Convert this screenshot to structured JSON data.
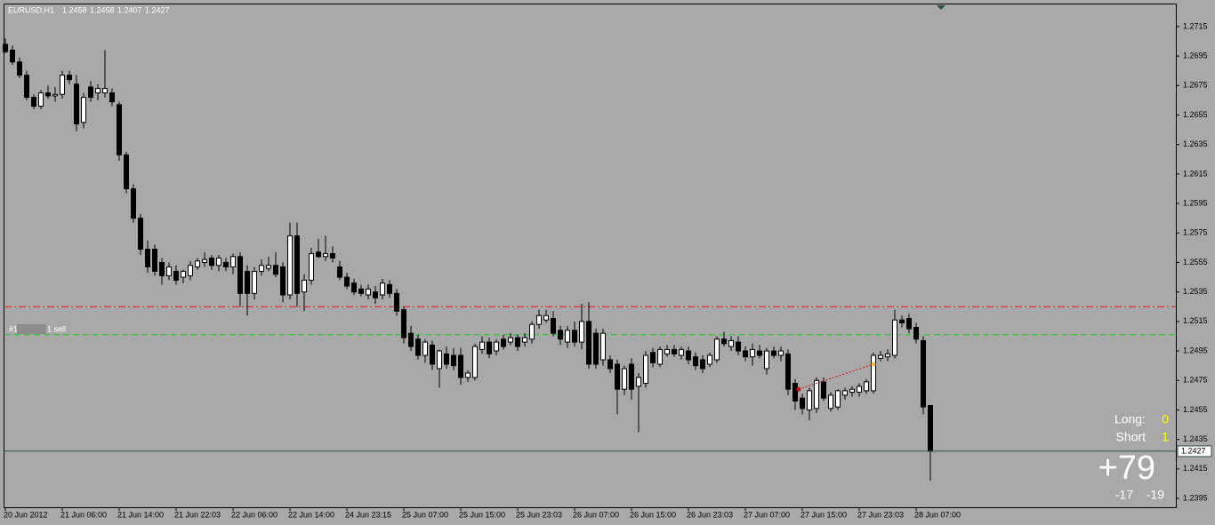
{
  "chart_data": {
    "type": "candlestick",
    "title": "EURUSD,H1",
    "categories": [
      "20 Jun 2012",
      null,
      null,
      null,
      null,
      null,
      null,
      null,
      "21 Jun 06:00",
      null,
      null,
      null,
      null,
      null,
      null,
      null,
      "21 Jun 14:00",
      null,
      null,
      null,
      null,
      null,
      null,
      null,
      "21 Jun 22:03",
      null,
      null,
      null,
      null,
      null,
      null,
      null,
      "22 Jun 06:00",
      null,
      null,
      null,
      null,
      null,
      null,
      null,
      "22 Jun 14:00",
      null,
      null,
      null,
      null,
      null,
      null,
      null,
      "24 Jun 23:15",
      null,
      null,
      null,
      null,
      null,
      null,
      null,
      "25 Jun 07:00",
      null,
      null,
      null,
      null,
      null,
      null,
      null,
      "25 Jun 15:00",
      null,
      null,
      null,
      null,
      null,
      null,
      null,
      "25 Jun 23:03",
      null,
      null,
      null,
      null,
      null,
      null,
      null,
      "26 Jun 07:00",
      null,
      null,
      null,
      null,
      null,
      null,
      null,
      "26 Jun 15:00",
      null,
      null,
      null,
      null,
      null,
      null,
      null,
      "26 Jun 23:03",
      null,
      null,
      null,
      null,
      null,
      null,
      null,
      "27 Jun 07:00",
      null,
      null,
      null,
      null,
      null,
      null,
      null,
      "27 Jun 15:00",
      null,
      null,
      null,
      null,
      null,
      null,
      null,
      "27 Jun 23:03",
      null,
      null,
      null,
      null,
      null,
      null,
      null,
      "28 Jun 07:00",
      null,
      null
    ],
    "ohlc": [
      [
        1.2703,
        1.2707,
        1.2697,
        1.2698
      ],
      [
        1.2699,
        1.2702,
        1.2689,
        1.2691
      ],
      [
        1.2691,
        1.2694,
        1.268,
        1.2682
      ],
      [
        1.2682,
        1.2685,
        1.2665,
        1.2667
      ],
      [
        1.2667,
        1.2669,
        1.2659,
        1.2661
      ],
      [
        1.2661,
        1.2672,
        1.2659,
        1.267
      ],
      [
        1.267,
        1.2675,
        1.2666,
        1.2668
      ],
      [
        1.2668,
        1.2674,
        1.2664,
        1.2669
      ],
      [
        1.2669,
        1.2685,
        1.2666,
        1.2682
      ],
      [
        1.2682,
        1.2685,
        1.2676,
        1.2679
      ],
      [
        1.2676,
        1.2682,
        1.2644,
        1.2649
      ],
      [
        1.265,
        1.267,
        1.2646,
        1.2667
      ],
      [
        1.2674,
        1.2678,
        1.2664,
        1.2667
      ],
      [
        1.267,
        1.2676,
        1.2665,
        1.2673
      ],
      [
        1.267,
        1.2699,
        1.2667,
        1.2673
      ],
      [
        1.267,
        1.2673,
        1.2661,
        1.2664
      ],
      [
        1.2662,
        1.2664,
        1.2624,
        1.2628
      ],
      [
        1.2628,
        1.263,
        1.2602,
        1.2605
      ],
      [
        1.2605,
        1.2608,
        1.2582,
        1.2585
      ],
      [
        1.2585,
        1.2588,
        1.256,
        1.2564
      ],
      [
        1.2564,
        1.257,
        1.2548,
        1.2552
      ],
      [
        1.2564,
        1.2567,
        1.2546,
        1.2549
      ],
      [
        1.2555,
        1.2558,
        1.254,
        1.2546
      ],
      [
        1.2546,
        1.2555,
        1.2543,
        1.2552
      ],
      [
        1.2549,
        1.2553,
        1.254,
        1.2543
      ],
      [
        1.2545,
        1.255,
        1.2541,
        1.2549
      ],
      [
        1.2546,
        1.2556,
        1.2543,
        1.2553
      ],
      [
        1.2552,
        1.2558,
        1.255,
        1.2556
      ],
      [
        1.2555,
        1.2562,
        1.2552,
        1.2557
      ],
      [
        1.2558,
        1.256,
        1.255,
        1.2553
      ],
      [
        1.2553,
        1.256,
        1.2549,
        1.2558
      ],
      [
        1.2555,
        1.2558,
        1.2549,
        1.2552
      ],
      [
        1.2552,
        1.2561,
        1.2547,
        1.2559
      ],
      [
        1.2559,
        1.2562,
        1.2525,
        1.2534
      ],
      [
        1.2549,
        1.2553,
        1.2519,
        1.2534
      ],
      [
        1.2534,
        1.2552,
        1.253,
        1.2549
      ],
      [
        1.2549,
        1.2557,
        1.2546,
        1.2553
      ],
      [
        1.2551,
        1.2559,
        1.2549,
        1.2553
      ],
      [
        1.2553,
        1.2562,
        1.2545,
        1.2547
      ],
      [
        1.2552,
        1.2555,
        1.2528,
        1.2533
      ],
      [
        1.2533,
        1.2582,
        1.253,
        1.2573
      ],
      [
        1.2573,
        1.2582,
        1.2525,
        1.2534
      ],
      [
        1.2535,
        1.2547,
        1.2522,
        1.2543
      ],
      [
        1.2543,
        1.2565,
        1.254,
        1.2561
      ],
      [
        1.2562,
        1.2571,
        1.2558,
        1.2559
      ],
      [
        1.2559,
        1.2573,
        1.2556,
        1.2561
      ],
      [
        1.2561,
        1.2566,
        1.2555,
        1.2558
      ],
      [
        1.2552,
        1.2556,
        1.2543,
        1.2545
      ],
      [
        1.2545,
        1.2548,
        1.2537,
        1.2539
      ],
      [
        1.2541,
        1.2544,
        1.2533,
        1.2535
      ],
      [
        1.2537,
        1.254,
        1.2532,
        1.2534
      ],
      [
        1.2533,
        1.254,
        1.253,
        1.2537
      ],
      [
        1.2535,
        1.2539,
        1.2527,
        1.2531
      ],
      [
        1.2533,
        1.2544,
        1.253,
        1.2541
      ],
      [
        1.254,
        1.2543,
        1.2531,
        1.2534
      ],
      [
        1.2534,
        1.2537,
        1.2519,
        1.2522
      ],
      [
        1.2523,
        1.2525,
        1.25,
        1.2504
      ],
      [
        1.2507,
        1.2512,
        1.2495,
        1.2498
      ],
      [
        1.2503,
        1.2506,
        1.2489,
        1.2492
      ],
      [
        1.2492,
        1.2503,
        1.2487,
        1.2501
      ],
      [
        1.2499,
        1.2502,
        1.2482,
        1.2486
      ],
      [
        1.2483,
        1.2496,
        1.247,
        1.2495
      ],
      [
        1.2493,
        1.2498,
        1.2483,
        1.2486
      ],
      [
        1.2492,
        1.2497,
        1.2482,
        1.2485
      ],
      [
        1.2492,
        1.2497,
        1.2472,
        1.2477
      ],
      [
        1.2477,
        1.2482,
        1.2474,
        1.248
      ],
      [
        1.2477,
        1.25,
        1.2475,
        1.2498
      ],
      [
        1.2496,
        1.2505,
        1.2493,
        1.2501
      ],
      [
        1.2501,
        1.2504,
        1.249,
        1.2493
      ],
      [
        1.2495,
        1.2503,
        1.2492,
        1.2501
      ],
      [
        1.2503,
        1.2506,
        1.2496,
        1.2498
      ],
      [
        1.2501,
        1.2507,
        1.2499,
        1.2504
      ],
      [
        1.2504,
        1.2506,
        1.2495,
        1.2498
      ],
      [
        1.2501,
        1.2507,
        1.2498,
        1.2504
      ],
      [
        1.2503,
        1.2515,
        1.25,
        1.2513
      ],
      [
        1.2513,
        1.2523,
        1.251,
        1.2519
      ],
      [
        1.2516,
        1.2523,
        1.2514,
        1.2519
      ],
      [
        1.2517,
        1.2522,
        1.2505,
        1.2507
      ],
      [
        1.2509,
        1.2512,
        1.2499,
        1.2503
      ],
      [
        1.2501,
        1.2512,
        1.2497,
        1.2509
      ],
      [
        1.2509,
        1.2515,
        1.2498,
        1.2501
      ],
      [
        1.2501,
        1.2527,
        1.2496,
        1.2515
      ],
      [
        1.2515,
        1.2528,
        1.2483,
        1.2486
      ],
      [
        1.2507,
        1.251,
        1.2483,
        1.2486
      ],
      [
        1.2489,
        1.251,
        1.2485,
        1.2507
      ],
      [
        1.2489,
        1.2492,
        1.248,
        1.2483
      ],
      [
        1.2486,
        1.2489,
        1.2452,
        1.2469
      ],
      [
        1.2469,
        1.2485,
        1.2465,
        1.2483
      ],
      [
        1.2486,
        1.249,
        1.2462,
        1.2469
      ],
      [
        1.2471,
        1.248,
        1.244,
        1.2477
      ],
      [
        1.2473,
        1.2495,
        1.247,
        1.2492
      ],
      [
        1.2494,
        1.2497,
        1.2484,
        1.2487
      ],
      [
        1.2486,
        1.2498,
        1.2484,
        1.2496
      ],
      [
        1.2493,
        1.2499,
        1.2491,
        1.2496
      ],
      [
        1.2496,
        1.2499,
        1.2491,
        1.2493
      ],
      [
        1.2492,
        1.2498,
        1.2489,
        1.2496
      ],
      [
        1.2495,
        1.2498,
        1.2486,
        1.2489
      ],
      [
        1.2491,
        1.2494,
        1.2482,
        1.2485
      ],
      [
        1.2489,
        1.2492,
        1.248,
        1.2483
      ],
      [
        1.2486,
        1.2494,
        1.2484,
        1.2492
      ],
      [
        1.2489,
        1.2505,
        1.2487,
        1.2503
      ],
      [
        1.2503,
        1.2508,
        1.2498,
        1.25
      ],
      [
        1.2498,
        1.2505,
        1.2495,
        1.2502
      ],
      [
        1.2501,
        1.2505,
        1.2492,
        1.2495
      ],
      [
        1.2495,
        1.2498,
        1.2488,
        1.2491
      ],
      [
        1.2491,
        1.25,
        1.2485,
        1.2496
      ],
      [
        1.2495,
        1.2499,
        1.249,
        1.2492
      ],
      [
        1.2483,
        1.2497,
        1.2479,
        1.2495
      ],
      [
        1.2495,
        1.2498,
        1.249,
        1.2492
      ],
      [
        1.2492,
        1.2498,
        1.2488,
        1.2495
      ],
      [
        1.2493,
        1.2496,
        1.2465,
        1.2469
      ],
      [
        1.2473,
        1.2476,
        1.2455,
        1.2461
      ],
      [
        1.2463,
        1.2466,
        1.2452,
        1.2456
      ],
      [
        1.2455,
        1.247,
        1.2448,
        1.2468
      ],
      [
        1.2456,
        1.2477,
        1.2453,
        1.2475
      ],
      [
        1.2474,
        1.2477,
        1.2461,
        1.2463
      ],
      [
        1.2456,
        1.2467,
        1.2454,
        1.2465
      ],
      [
        1.2457,
        1.2469,
        1.2455,
        1.2468
      ],
      [
        1.2465,
        1.247,
        1.2462,
        1.2468
      ],
      [
        1.2467,
        1.2471,
        1.2464,
        1.2469
      ],
      [
        1.2467,
        1.2473,
        1.2464,
        1.2471
      ],
      [
        1.2468,
        1.2476,
        1.2466,
        1.2474
      ],
      [
        1.2468,
        1.2494,
        1.2466,
        1.2492
      ],
      [
        1.249,
        1.2495,
        1.2488,
        1.2492
      ],
      [
        1.2491,
        1.2496,
        1.2488,
        1.2493
      ],
      [
        1.2492,
        1.2523,
        1.249,
        1.2516
      ],
      [
        1.2516,
        1.2519,
        1.2511,
        1.2514
      ],
      [
        1.2517,
        1.252,
        1.2507,
        1.251
      ],
      [
        1.2511,
        1.2514,
        1.25,
        1.2503
      ],
      [
        1.2502,
        1.2505,
        1.2452,
        1.2457
      ],
      [
        1.2458,
        1.2458,
        1.2407,
        1.2427
      ]
    ],
    "ylim": [
      1.2389,
      1.273
    ],
    "yticks": [
      1.2395,
      1.2415,
      1.2435,
      1.2455,
      1.2475,
      1.2495,
      1.2515,
      1.2535,
      1.2555,
      1.2575,
      1.2595,
      1.2615,
      1.2635,
      1.2655,
      1.2675,
      1.2695,
      1.2715
    ],
    "colors": {
      "background": "#a8a8a8",
      "bull": "#ffffff",
      "bear": "#000000",
      "wick": "#000000",
      "price_line": "#2f4f4f"
    },
    "levels": [
      {
        "value": 1.2525,
        "color": "#e8191b",
        "dash": "8 3 2 3"
      },
      {
        "value": 1.2506,
        "color": "#22cc22",
        "dash": "7 4"
      }
    ],
    "trade": {
      "x": [
        111.5,
        122
      ],
      "y": [
        1.2469,
        1.2486
      ],
      "color": "#d01010"
    }
  },
  "order_label": {
    "prefix": "#1",
    "suffix": "1 sell"
  },
  "panel": {
    "long_label": "Long:",
    "long_value": 0,
    "short_label": "Short",
    "short_value": 1,
    "profit": {
      "value": 79,
      "label": "+79"
    },
    "left_value": -17,
    "right_value": -19
  }
}
